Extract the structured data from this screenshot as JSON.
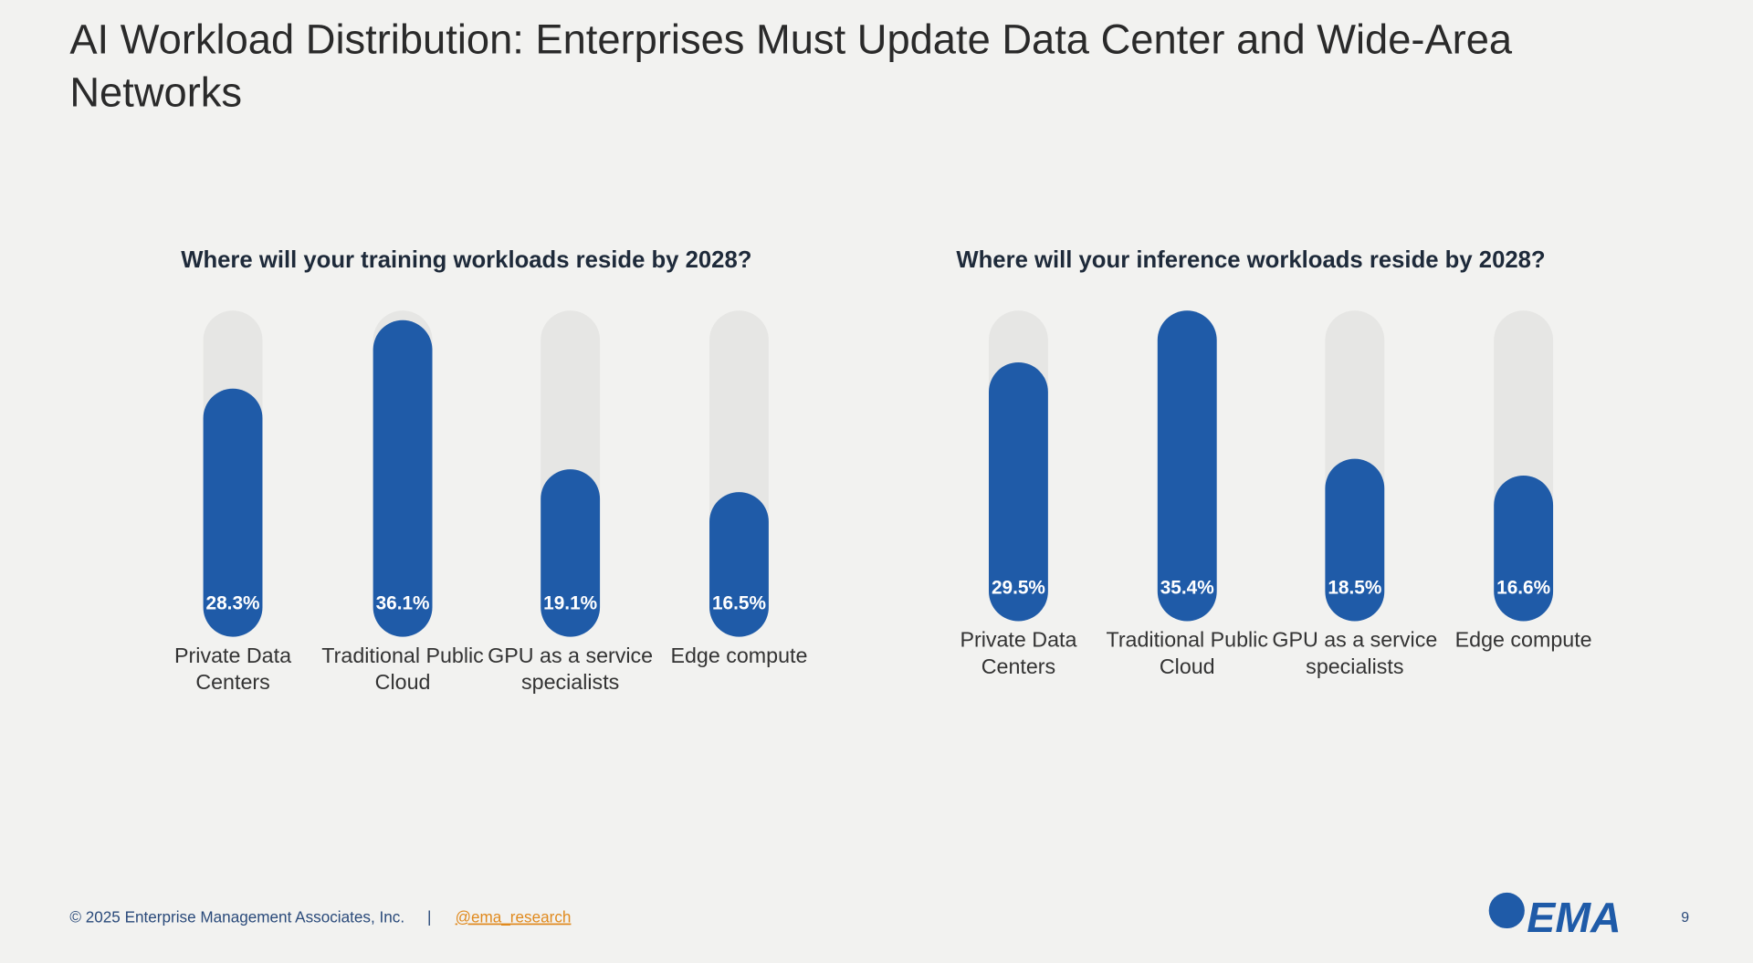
{
  "header": {
    "title": "AI Workload Distribution: Enterprises Must Update Data Center and Wide-Area Networks"
  },
  "chart_data": [
    {
      "type": "bar",
      "title": "Where will your training workloads reside by 2028?",
      "categories": [
        "Private Data Centers",
        "Traditional Public Cloud",
        "GPU as a service specialists",
        "Edge compute"
      ],
      "values": [
        28.3,
        36.1,
        19.1,
        16.5
      ],
      "value_labels": [
        "28.3%",
        "36.1%",
        "19.1%",
        "16.5%"
      ],
      "color": "#1f5ba8",
      "track_color": "#e6e6e4",
      "ylim": [
        0,
        37.2
      ]
    },
    {
      "type": "bar",
      "title": "Where will your inference workloads reside by 2028?",
      "categories": [
        "Private Data Centers",
        "Traditional Public Cloud",
        "GPU as a service specialists",
        "Edge compute"
      ],
      "values": [
        29.5,
        35.4,
        18.5,
        16.6
      ],
      "value_labels": [
        "29.5%",
        "35.4%",
        "18.5%",
        "16.6%"
      ],
      "color": "#1f5ba8",
      "track_color": "#e6e6e4",
      "ylim": [
        0,
        35.4
      ]
    }
  ],
  "footer": {
    "copyright": "© 2025 Enterprise Management Associates, Inc.",
    "separator": "|",
    "handle": "@ema_research",
    "logo": "EMA",
    "page": "9"
  }
}
